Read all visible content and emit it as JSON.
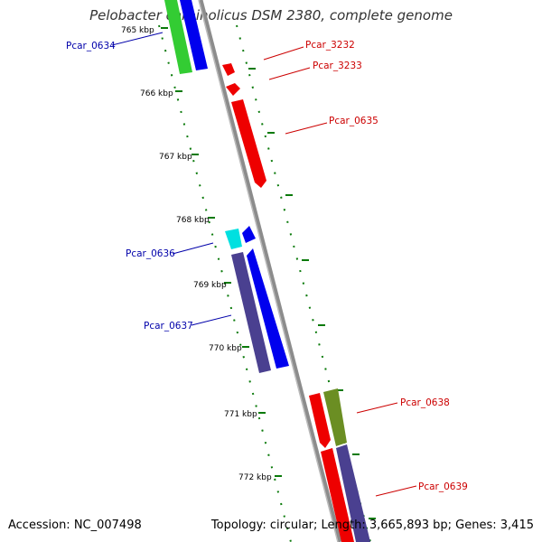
{
  "title": "Pelobacter carbinolicus DSM 2380, complete genome",
  "footer": {
    "accession": "Accession: NC_007498",
    "summary": "Topology: circular; Length: 3,665,893 bp; Genes: 3,415"
  },
  "colors": {
    "backbone": "#8c8c8c",
    "tick_dots": "#0a7a0a",
    "forward_label": "#cc0000",
    "reverse_label": "#0000aa",
    "gene_red": "#ee0000",
    "gene_blue": "#0000ee",
    "gene_green": "#33cc33",
    "gene_cyan": "#00e0e0",
    "gene_purple": "#4a4090",
    "gene_olive": "#6b8e23"
  },
  "ticks": [
    "765 kbp",
    "766 kbp",
    "767 kbp",
    "768 kbp",
    "769 kbp",
    "770 kbp",
    "771 kbp",
    "772 kbp"
  ],
  "genes": [
    {
      "id": "Pcar_0634",
      "strand": "reverse",
      "color": "gene_blue"
    },
    {
      "id": "Pcar_3232",
      "strand": "forward",
      "color": "gene_red"
    },
    {
      "id": "Pcar_3233",
      "strand": "forward",
      "color": "gene_red"
    },
    {
      "id": "Pcar_0635",
      "strand": "forward",
      "color": "gene_red"
    },
    {
      "id": "Pcar_0636",
      "strand": "reverse",
      "color": "gene_blue"
    },
    {
      "id": "Pcar_0637",
      "strand": "reverse",
      "color": "gene_blue"
    },
    {
      "id": "Pcar_0638",
      "strand": "forward",
      "color": "gene_red"
    },
    {
      "id": "Pcar_0639",
      "strand": "forward",
      "color": "gene_red"
    }
  ]
}
